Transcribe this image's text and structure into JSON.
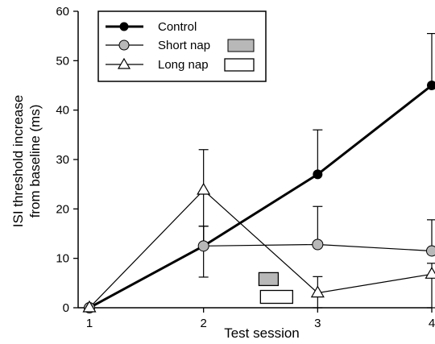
{
  "chart_data": {
    "type": "line",
    "xlabel": "Test session",
    "ylabel_lines": [
      "ISI threshold increase",
      "from baseline (ms)"
    ],
    "x": [
      1,
      2,
      3,
      4
    ],
    "x_tick_labels": [
      "1",
      "2",
      "3",
      "4"
    ],
    "xlim": [
      1,
      4
    ],
    "ylim": [
      0,
      60
    ],
    "y_ticks": [
      0,
      10,
      20,
      30,
      40,
      50,
      60
    ],
    "grid": false,
    "legend_position": "top-left",
    "series": [
      {
        "name": "Control",
        "marker": "filled-circle",
        "line": "thick",
        "values": [
          0,
          12.5,
          27,
          45
        ],
        "error_upper": [
          0,
          16.5,
          36,
          55.5
        ]
      },
      {
        "name": "Short nap",
        "marker": "gray-circle",
        "line": "thin",
        "values": [
          0,
          12.5,
          12.8,
          11.5
        ],
        "error_upper": [
          0,
          16.5,
          20.5,
          17.8
        ]
      },
      {
        "name": "Long nap",
        "marker": "open-triangle",
        "line": "thin",
        "values": [
          0,
          23.8,
          3,
          6.8
        ],
        "error_upper": [
          0,
          32,
          6.3,
          9
        ],
        "error_lower": [
          0,
          6.2,
          0,
          0
        ]
      }
    ],
    "nap_markers": [
      {
        "legend_entry": "Short nap",
        "fill": "#b8b8b8",
        "x": 2.57,
        "y": 5.8
      },
      {
        "legend_entry": "Long nap",
        "fill": "#ffffff",
        "x": 2.64,
        "y": 2.2
      }
    ]
  }
}
